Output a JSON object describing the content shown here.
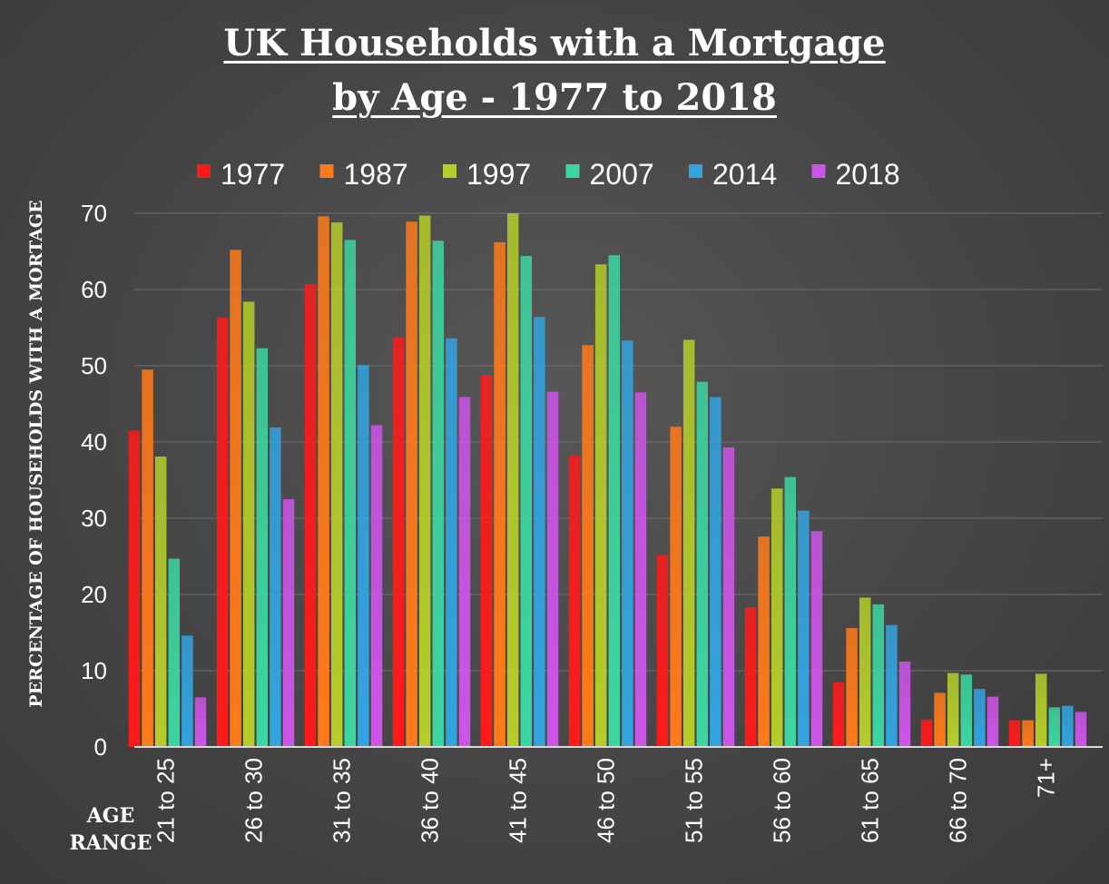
{
  "chart_data": {
    "type": "bar",
    "title_line1": "UK Households with a Mortgage",
    "title_line2": "by Age - 1977 to 2018",
    "xlabel_line1": "AGE",
    "xlabel_line2": "RANGE",
    "ylabel": "PERCENTAGE OF HOUSEHOLDS WITH A MORTAGE",
    "ylim": [
      0,
      70
    ],
    "yticks": [
      0,
      10,
      20,
      30,
      40,
      50,
      60,
      70
    ],
    "grid": true,
    "legend_position": "top",
    "categories": [
      "21 to 25",
      "26 to 30",
      "31 to 35",
      "36 to 40",
      "41 to 45",
      "46 to 50",
      "51 to 55",
      "56 to 60",
      "61 to 65",
      "66 to 70",
      "71+"
    ],
    "series": [
      {
        "name": "1977",
        "color": "#ff1a1a",
        "values": [
          41.5,
          56.3,
          60.7,
          53.7,
          48.8,
          38.2,
          25.2,
          18.3,
          8.5,
          3.6,
          3.5
        ]
      },
      {
        "name": "1987",
        "color": "#ff7a1a",
        "values": [
          49.5,
          65.2,
          69.6,
          68.9,
          66.2,
          52.7,
          42.0,
          27.6,
          15.6,
          7.1,
          3.5
        ]
      },
      {
        "name": "1997",
        "color": "#b5cc2a",
        "values": [
          38.1,
          58.4,
          68.8,
          69.7,
          70.0,
          63.3,
          53.4,
          33.9,
          19.6,
          9.7,
          9.6
        ]
      },
      {
        "name": "2007",
        "color": "#3cd6a0",
        "values": [
          24.7,
          52.3,
          66.5,
          66.4,
          64.4,
          64.5,
          47.9,
          35.4,
          18.7,
          9.5,
          5.2
        ]
      },
      {
        "name": "2014",
        "color": "#33a3e0",
        "values": [
          14.6,
          41.9,
          50.1,
          53.6,
          56.4,
          53.3,
          45.9,
          31.0,
          16.0,
          7.6,
          5.4
        ]
      },
      {
        "name": "2018",
        "color": "#cc55e8",
        "values": [
          6.5,
          32.5,
          42.2,
          45.9,
          46.6,
          46.5,
          39.3,
          28.3,
          11.2,
          6.6,
          4.6
        ]
      }
    ]
  }
}
